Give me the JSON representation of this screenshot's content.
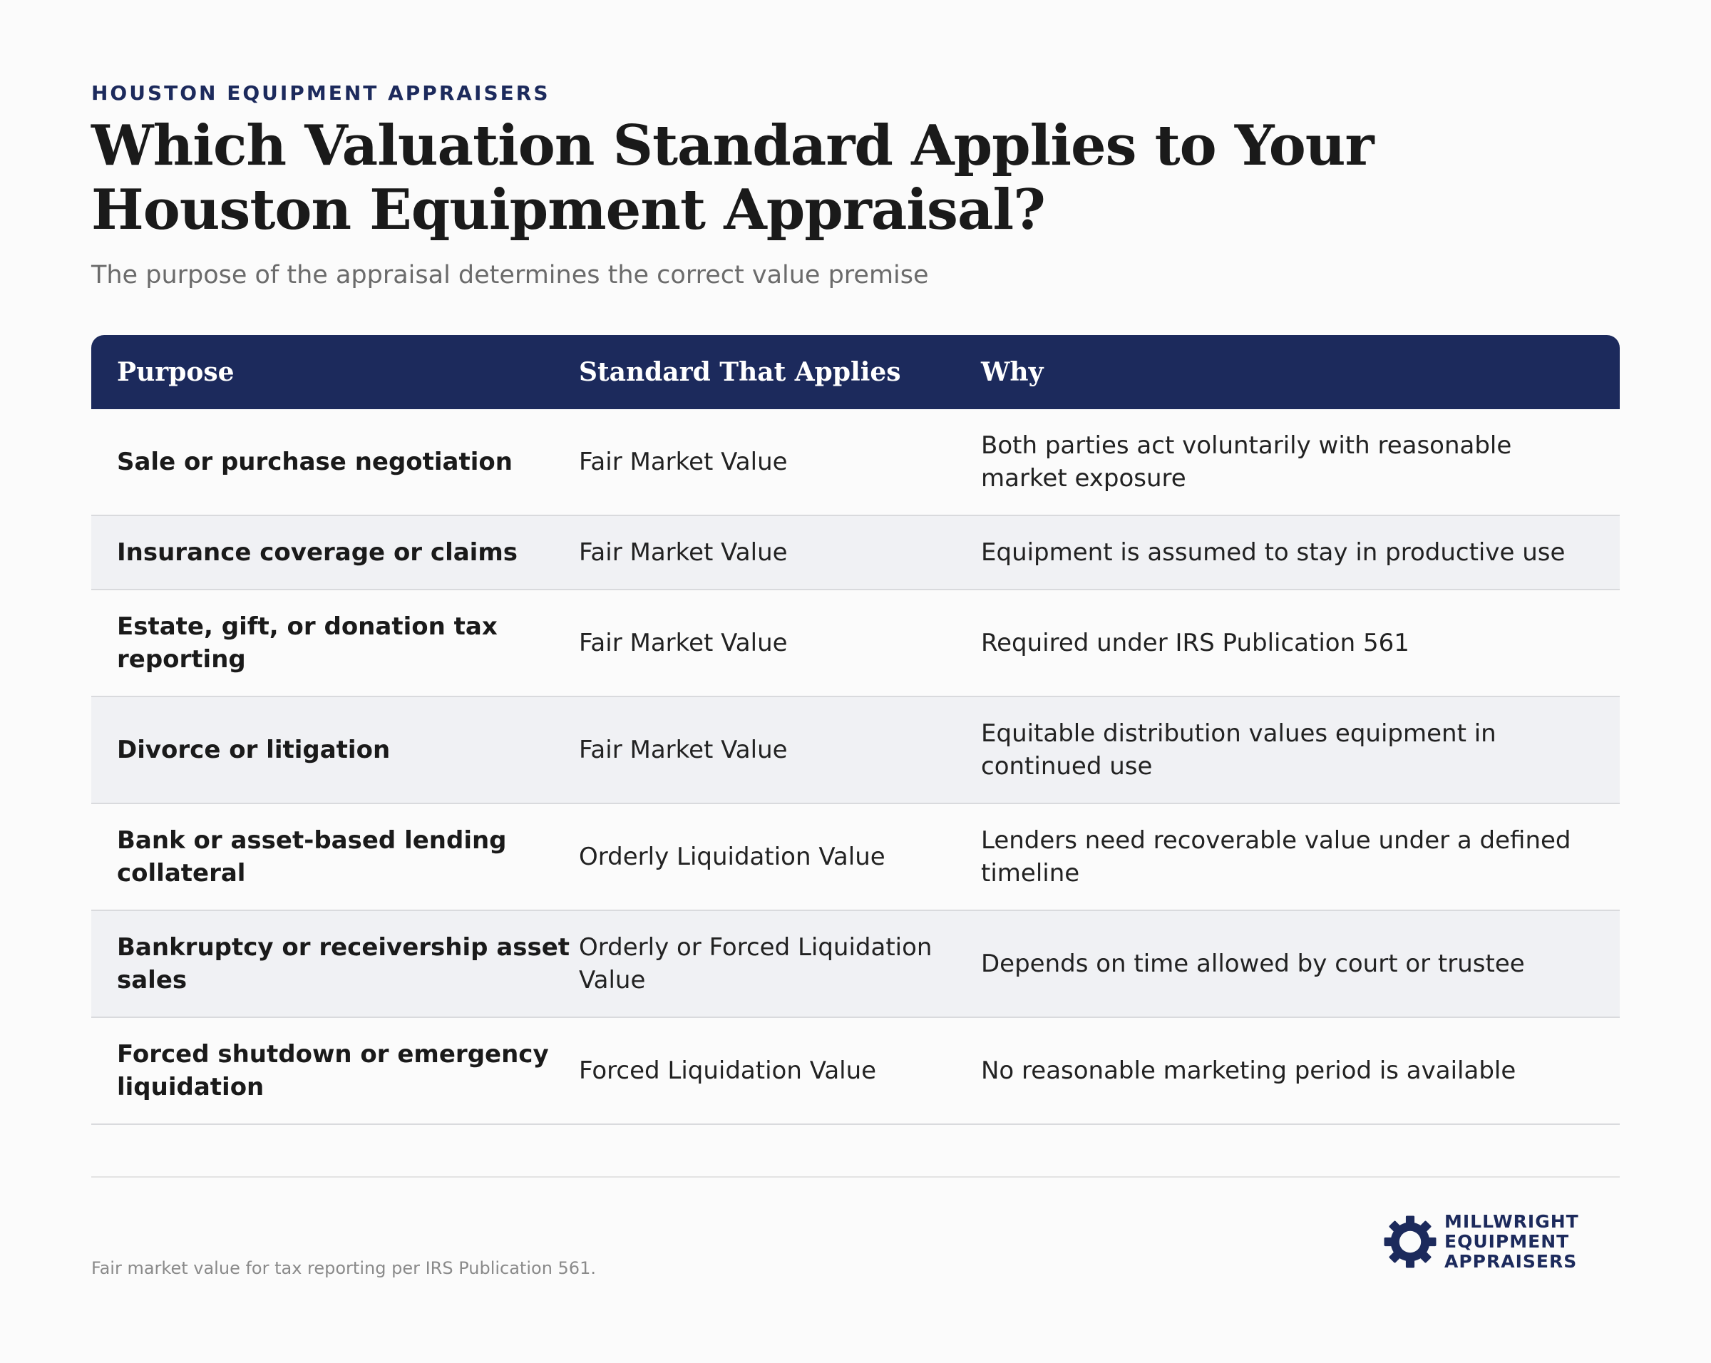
{
  "eyebrow": "HOUSTON EQUIPMENT APPRAISERS",
  "title": "Which Valuation Standard Applies to Your Houston Equipment Appraisal?",
  "subtitle": "The purpose of the appraisal determines the correct value premise",
  "table": {
    "headers": [
      "Purpose",
      "Standard That Applies",
      "Why"
    ],
    "rows": [
      {
        "purpose": "Sale or purchase negotiation",
        "standard": "Fair Market Value",
        "why": "Both parties act voluntarily with reasonable market exposure"
      },
      {
        "purpose": "Insurance coverage or claims",
        "standard": "Fair Market Value",
        "why": "Equipment is assumed to stay in productive use"
      },
      {
        "purpose": "Estate, gift, or donation tax reporting",
        "standard": "Fair Market Value",
        "why": "Required under IRS Publication 561"
      },
      {
        "purpose": "Divorce or litigation",
        "standard": "Fair Market Value",
        "why": "Equitable distribution values equipment in continued use"
      },
      {
        "purpose": "Bank or asset-based lending collateral",
        "standard": "Orderly Liquidation Value",
        "why": "Lenders need recoverable value under a defined timeline"
      },
      {
        "purpose": "Bankruptcy or receivership asset sales",
        "standard": "Orderly or Forced Liquidation Value",
        "why": "Depends on time allowed by court or trustee"
      },
      {
        "purpose": "Forced shutdown or emergency liquidation",
        "standard": "Forced Liquidation Value",
        "why": "No reasonable marketing period is available"
      }
    ]
  },
  "footnote": "Fair market value for tax reporting per IRS Publication 561.",
  "logo": {
    "icon": "gear-icon",
    "lines": [
      "MILLWRIGHT",
      "EQUIPMENT",
      "APPRAISERS"
    ]
  },
  "colors": {
    "navy": "#1c2a5c",
    "row_alt": "#f0f1f4",
    "background": "#fbfbfb"
  }
}
